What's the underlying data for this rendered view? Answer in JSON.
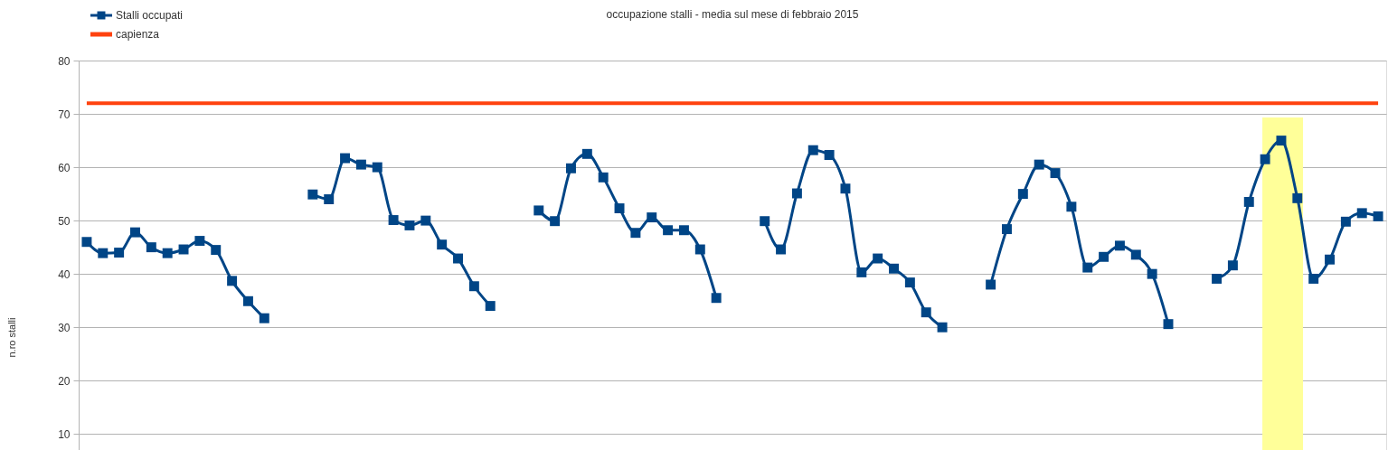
{
  "chart_data": {
    "type": "line",
    "title": "occupazione stalli - media sul mese di febbraio 2015",
    "ylabel": "n.ro stalli",
    "categories": [
      null,
      null,
      null,
      null,
      null,
      null,
      null,
      null,
      null,
      null,
      null,
      null,
      null,
      null,
      null,
      null,
      null,
      null,
      null,
      null,
      null,
      null,
      null,
      null,
      null,
      null,
      null,
      null,
      null,
      null,
      null,
      null,
      null,
      null,
      null,
      null,
      null,
      null,
      null,
      null,
      null,
      null,
      null,
      null,
      null,
      null,
      null,
      null,
      null,
      null,
      null,
      null,
      null,
      null,
      null,
      null,
      null,
      null,
      null,
      null,
      null,
      null,
      null,
      null,
      null,
      null,
      null,
      null,
      null,
      null,
      null,
      null,
      null,
      null,
      null,
      null,
      null,
      null,
      null,
      null,
      null
    ],
    "series": [
      {
        "name": "Stalli occupati",
        "color": "#004586",
        "marker": "square",
        "line_style": "solid",
        "values": [
          46.0,
          43.9,
          44.0,
          47.8,
          45.0,
          43.9,
          44.6,
          46.2,
          44.5,
          38.7,
          34.9,
          31.7,
          null,
          null,
          54.9,
          54.0,
          61.7,
          60.5,
          60.0,
          50.1,
          49.1,
          50.0,
          45.5,
          42.9,
          37.7,
          34.0,
          null,
          null,
          51.9,
          49.9,
          59.8,
          62.5,
          58.1,
          52.3,
          47.7,
          50.6,
          48.2,
          48.2,
          44.6,
          35.5,
          null,
          null,
          49.9,
          44.6,
          55.1,
          63.2,
          62.3,
          56.0,
          40.3,
          42.9,
          41.0,
          38.4,
          32.8,
          30.0,
          null,
          null,
          38.0,
          48.4,
          55.0,
          60.5,
          58.9,
          52.6,
          41.2,
          43.2,
          45.3,
          43.6,
          40.0,
          30.6,
          null,
          null,
          39.1,
          41.6,
          53.5,
          61.5,
          65.0,
          54.2,
          39.1,
          42.7,
          49.8,
          51.4,
          50.8
        ]
      },
      {
        "name": "capienza",
        "color": "#ff420e",
        "line_style": "solid",
        "values": [
          72,
          72,
          72,
          72,
          72,
          72,
          72,
          72,
          72,
          72,
          72,
          72,
          72,
          72,
          72,
          72,
          72,
          72,
          72,
          72,
          72,
          72,
          72,
          72,
          72,
          72,
          72,
          72,
          72,
          72,
          72,
          72,
          72,
          72,
          72,
          72,
          72,
          72,
          72,
          72,
          72,
          72,
          72,
          72,
          72,
          72,
          72,
          72,
          72,
          72,
          72,
          72,
          72,
          72,
          72,
          72,
          72,
          72,
          72,
          72,
          72,
          72,
          72,
          72,
          72,
          72,
          72,
          72,
          72,
          72,
          72,
          72,
          72,
          72,
          72,
          72,
          72,
          72,
          72,
          72,
          72
        ]
      }
    ],
    "ylim": [
      7,
      80
    ],
    "yticks": [
      10,
      20,
      30,
      40,
      50,
      60,
      70,
      80
    ],
    "grid": "y",
    "legend": "top left",
    "tick_labels": "y"
  }
}
